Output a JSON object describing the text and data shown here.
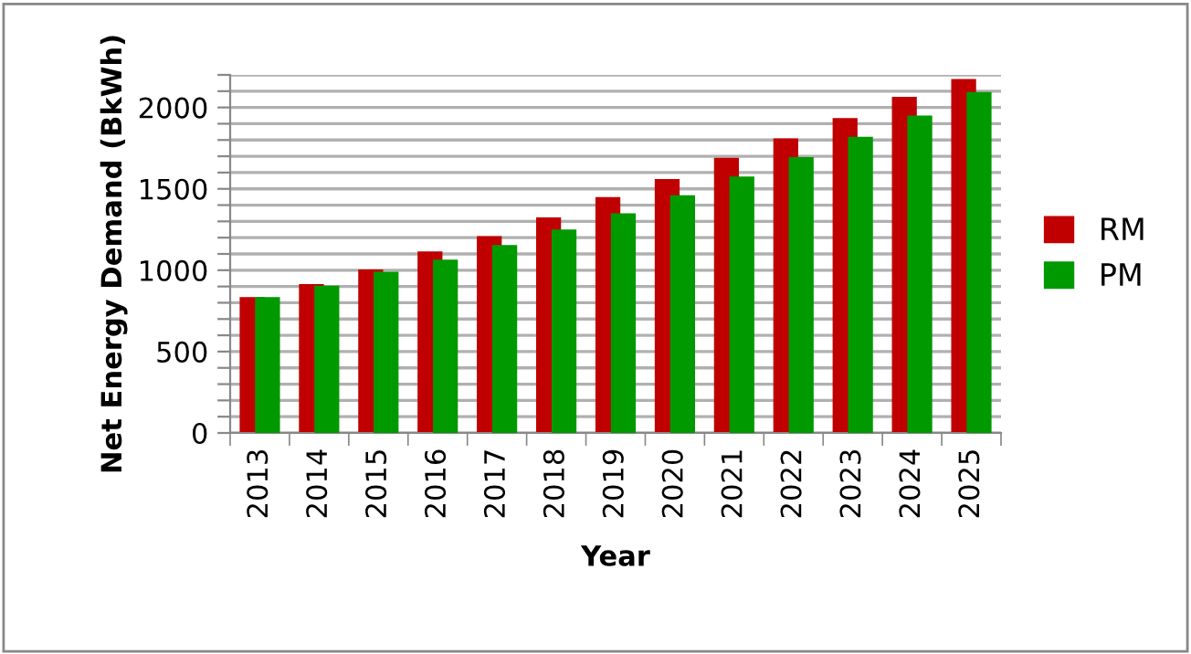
{
  "chart_data": {
    "type": "bar",
    "xlabel": "Year",
    "ylabel": "Net Energy Demand (BkWh)",
    "categories": [
      "2013",
      "2014",
      "2015",
      "2016",
      "2017",
      "2018",
      "2019",
      "2020",
      "2021",
      "2022",
      "2023",
      "2024",
      "2025"
    ],
    "series": [
      {
        "name": "RM",
        "color": "#c00000",
        "values": [
          835,
          915,
          1005,
          1115,
          1210,
          1325,
          1450,
          1560,
          1690,
          1810,
          1935,
          2065,
          2175
        ]
      },
      {
        "name": "PM",
        "color": "#009900",
        "values": [
          835,
          905,
          990,
          1065,
          1155,
          1250,
          1350,
          1460,
          1575,
          1695,
          1820,
          1950,
          2095
        ]
      }
    ],
    "ylim": [
      0,
      2200
    ],
    "yticks": [
      0,
      {
        "value": 100,
        "label": null
      },
      {
        "value": 200,
        "label": null
      },
      {
        "value": 300,
        "label": null
      },
      {
        "value": 400,
        "label": null
      },
      500,
      {
        "value": 600,
        "label": null
      },
      {
        "value": 700,
        "label": null
      },
      {
        "value": 800,
        "label": null
      },
      {
        "value": 900,
        "label": null
      },
      1000,
      {
        "value": 1100,
        "label": null
      },
      {
        "value": 1200,
        "label": null
      },
      {
        "value": 1300,
        "label": null
      },
      {
        "value": 1400,
        "label": null
      },
      1500,
      {
        "value": 1600,
        "label": null
      },
      {
        "value": 1700,
        "label": null
      },
      {
        "value": 1800,
        "label": null
      },
      {
        "value": 1900,
        "label": null
      },
      2000,
      {
        "value": 2100,
        "label": null
      },
      {
        "value": 2200,
        "label": null
      }
    ],
    "grid": "y",
    "legend": "right"
  }
}
